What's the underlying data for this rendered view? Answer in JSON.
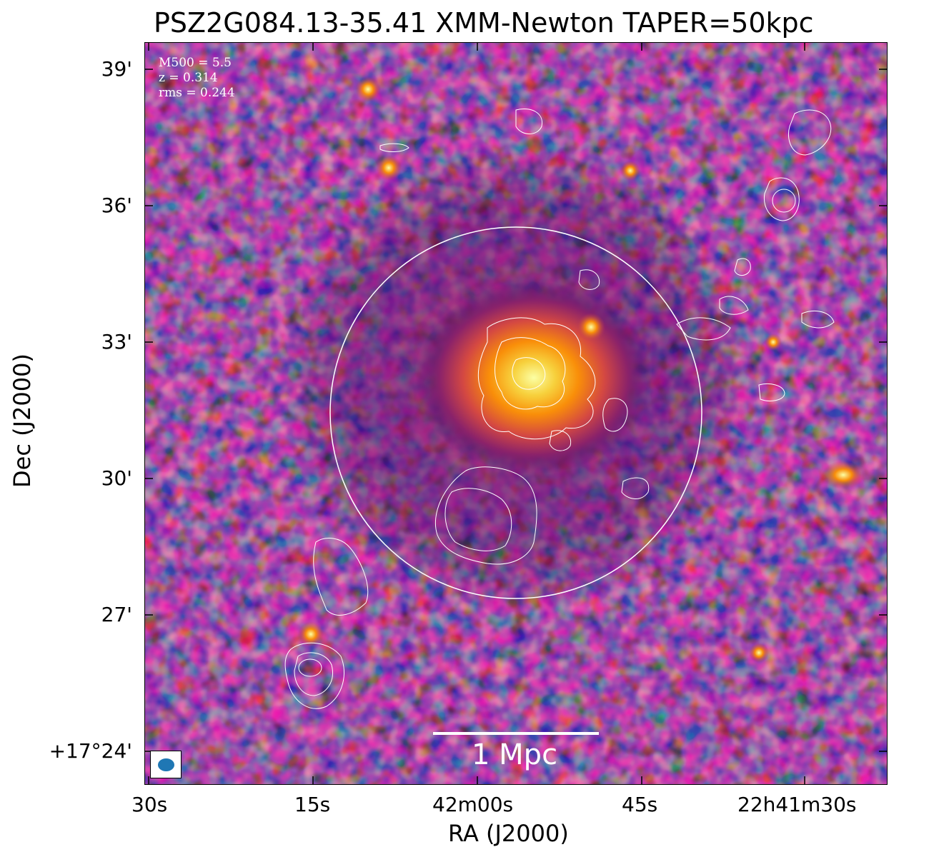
{
  "title": "PSZ2G084.13-35.41 XMM-Newton TAPER=50kpc",
  "axes": {
    "xlabel": "RA (J2000)",
    "ylabel": "Dec (J2000)",
    "xticks": [
      "30s",
      "15s",
      "42m00s",
      "45s",
      "22h41m30s"
    ],
    "yticks": [
      "39'",
      "36'",
      "33'",
      "30'",
      "27'",
      "+17°24'"
    ]
  },
  "info": {
    "m500": "M500 = 5.5",
    "z": "z = 0.314",
    "rms": "rms = 0.244"
  },
  "scalebar": {
    "label": "1 Mpc"
  },
  "colors": {
    "contour": "#ffffff",
    "circle": "#ffffff",
    "beam": "#1f77b4",
    "colormap": "inferno"
  },
  "image": {
    "colormap": "inferno",
    "description_elements": [
      "x-ray-image",
      "radio-contours",
      "r500-circle",
      "beam-ellipse",
      "scale-bar"
    ]
  }
}
